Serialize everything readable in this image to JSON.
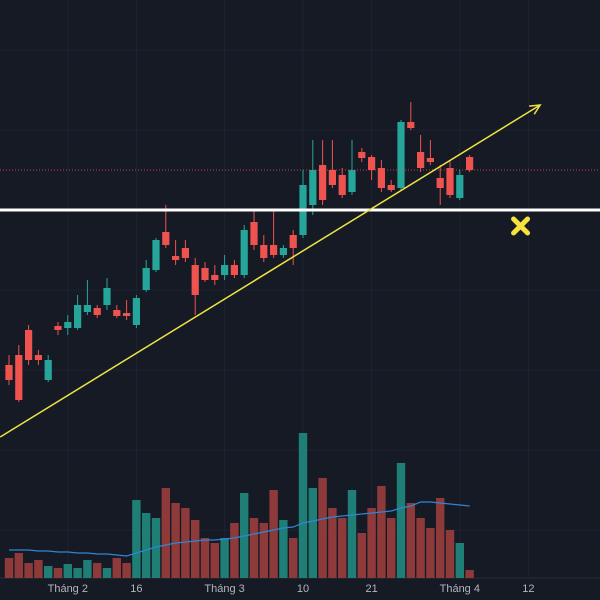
{
  "chart_data": {
    "type": "candlestick",
    "categories": [
      null,
      null,
      null,
      null,
      null,
      null,
      "Tháng 2",
      null,
      null,
      null,
      null,
      null,
      null,
      "16",
      null,
      null,
      null,
      null,
      null,
      null,
      null,
      null,
      "Tháng 3",
      null,
      null,
      null,
      null,
      null,
      null,
      null,
      "10",
      null,
      null,
      null,
      null,
      null,
      null,
      "21",
      null,
      null,
      null,
      null,
      null,
      null,
      null,
      null,
      "Tháng 4",
      null,
      null,
      null,
      null,
      null,
      null,
      "12"
    ],
    "open": [
      235,
      245,
      270,
      245,
      220,
      274,
      272,
      272,
      288,
      292,
      295,
      290,
      287,
      275,
      310,
      330,
      368,
      344,
      352,
      335,
      332,
      325,
      325,
      335,
      325,
      378,
      355,
      355,
      345,
      365,
      365,
      395,
      435,
      430,
      425,
      408,
      448,
      443,
      432,
      415,
      412,
      478,
      448,
      442,
      422,
      432,
      402,
      443,
      null,
      null,
      null,
      null,
      null,
      null
    ],
    "high": [
      245,
      255,
      275,
      250,
      245,
      278,
      285,
      305,
      320,
      295,
      322,
      295,
      300,
      305,
      340,
      362,
      395,
      360,
      360,
      342,
      338,
      335,
      345,
      340,
      375,
      390,
      365,
      390,
      355,
      370,
      430,
      460,
      460,
      460,
      432,
      460,
      452,
      445,
      440,
      420,
      480,
      498,
      465,
      460,
      435,
      440,
      430,
      445,
      null,
      null,
      null,
      null,
      null,
      null
    ],
    "low": [
      215,
      198,
      235,
      235,
      218,
      265,
      265,
      270,
      285,
      282,
      290,
      282,
      280,
      272,
      308,
      328,
      352,
      335,
      338,
      285,
      318,
      315,
      320,
      322,
      322,
      350,
      338,
      342,
      342,
      335,
      362,
      385,
      395,
      412,
      402,
      405,
      438,
      420,
      408,
      408,
      410,
      470,
      428,
      435,
      395,
      402,
      400,
      428,
      null,
      null,
      null,
      null,
      null,
      null
    ],
    "close": [
      220,
      200,
      240,
      240,
      240,
      270,
      278,
      295,
      295,
      285,
      312,
      284,
      284,
      302,
      332,
      360,
      355,
      340,
      342,
      305,
      320,
      320,
      335,
      325,
      370,
      355,
      342,
      345,
      352,
      352,
      415,
      430,
      400,
      415,
      405,
      430,
      442,
      430,
      412,
      410,
      478,
      472,
      432,
      438,
      412,
      405,
      425,
      430,
      null,
      null,
      null,
      null,
      null,
      null
    ],
    "volume": [
      20,
      25,
      15,
      18,
      12,
      10,
      14,
      10,
      18,
      15,
      10,
      20,
      15,
      78,
      65,
      60,
      90,
      75,
      70,
      58,
      40,
      35,
      40,
      55,
      85,
      60,
      55,
      88,
      58,
      40,
      145,
      90,
      100,
      70,
      60,
      88,
      45,
      70,
      92,
      60,
      115,
      75,
      60,
      50,
      80,
      48,
      35,
      8,
      null,
      null,
      null,
      null,
      null,
      null
    ],
    "volume_ma": [
      28,
      28,
      28,
      27,
      27,
      26,
      26,
      25,
      25,
      24,
      24,
      23,
      22,
      25,
      28,
      31,
      33,
      35,
      36,
      37,
      38,
      38,
      39,
      40,
      42,
      44,
      46,
      48,
      50,
      51,
      55,
      57,
      59,
      61,
      62,
      63,
      64,
      65,
      66,
      67,
      70,
      72,
      76,
      76,
      75,
      74,
      73,
      72,
      null,
      null,
      null,
      null,
      null,
      null
    ],
    "ylim": [
      0,
      600
    ],
    "volume_ylim": [
      0,
      200
    ],
    "up_color": "#26a69a",
    "down_color": "#ef5350",
    "volume_up_color": "#1f7f77",
    "volume_down_color": "#8f3a3a",
    "volume_ma_color": "#2e86d6",
    "price_line_color": "#ef5350",
    "horizontal_line": 390,
    "horizontal_line_color": "#ffffff",
    "trend_line": {
      "x": [
        -0.9,
        54.2
      ],
      "y": [
        163,
        495
      ],
      "color": "#f0e442"
    },
    "marker": {
      "x": 52.2,
      "y": 374,
      "color": "#f5e23c"
    }
  }
}
